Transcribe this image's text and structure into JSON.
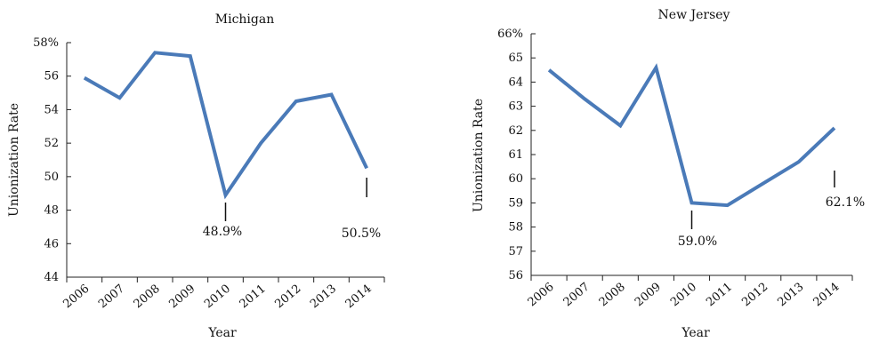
{
  "chart_data": [
    {
      "type": "line",
      "title": "Michigan",
      "xlabel": "Year",
      "ylabel": "Unionization Rate",
      "x": [
        "2006",
        "2007",
        "2008",
        "2009",
        "2010",
        "2011",
        "2012",
        "2013",
        "2014"
      ],
      "values": [
        55.9,
        54.7,
        57.4,
        57.2,
        48.9,
        52.0,
        54.5,
        54.9,
        50.5
      ],
      "ylim": [
        44,
        58
      ],
      "yticks": [
        "44",
        "46",
        "48",
        "50",
        "52",
        "54",
        "56",
        "58%"
      ],
      "ytick_values": [
        44,
        46,
        48,
        50,
        52,
        54,
        56,
        58
      ],
      "annotations": [
        {
          "text": "48.9%",
          "x": "2010",
          "y": 48.9
        },
        {
          "text": "50.5%",
          "x": "2014",
          "y": 50.5
        }
      ],
      "color": "#4a7ab8",
      "grid": false
    },
    {
      "type": "line",
      "title": "New Jersey",
      "xlabel": "Year",
      "ylabel": "Unionization Rate",
      "x": [
        "2006",
        "2007",
        "2008",
        "2009",
        "2010",
        "2011",
        "2012",
        "2013",
        "2014"
      ],
      "values": [
        64.5,
        63.3,
        62.2,
        64.6,
        59.0,
        58.9,
        59.8,
        60.7,
        62.1
      ],
      "ylim": [
        56,
        66
      ],
      "yticks": [
        "56",
        "57",
        "58",
        "59",
        "60",
        "61",
        "62",
        "63",
        "64",
        "65",
        "66%"
      ],
      "ytick_values": [
        56,
        57,
        58,
        59,
        60,
        61,
        62,
        63,
        64,
        65,
        66
      ],
      "annotations": [
        {
          "text": "59.0%",
          "x": "2010",
          "y": 59.0
        },
        {
          "text": "62.1%",
          "x": "2014",
          "y": 62.1
        }
      ],
      "color": "#4a7ab8",
      "grid": false
    }
  ]
}
